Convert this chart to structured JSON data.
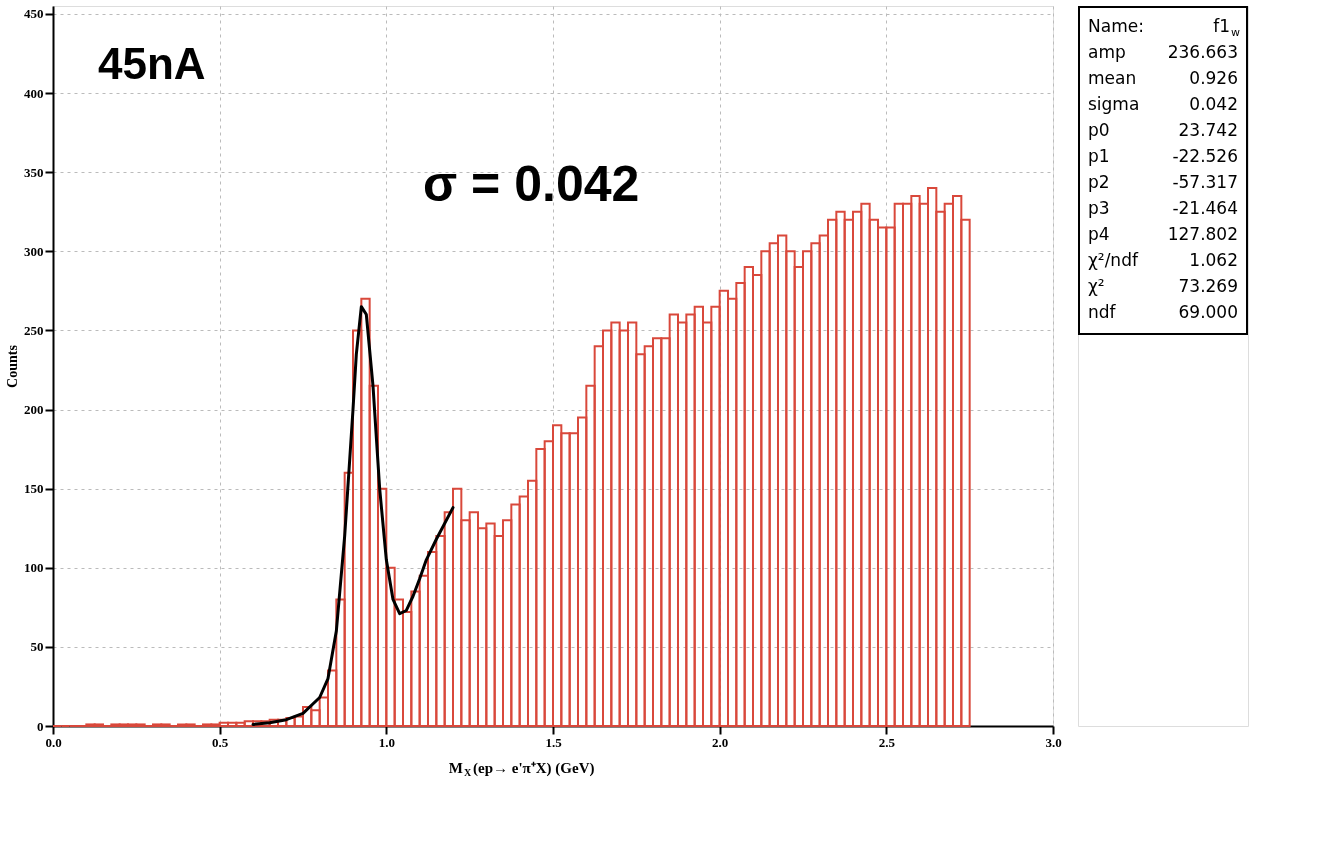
{
  "chart_data": {
    "type": "histogram",
    "xlabel": "M$_{X}$(ep→ e'π⁺X) (GeV)",
    "ylabel": "Counts",
    "bins": [
      0.0,
      0.025,
      0.05,
      0.075,
      0.1,
      0.125,
      0.15,
      0.175,
      0.2,
      0.225,
      0.25,
      0.275,
      0.3,
      0.325,
      0.35,
      0.375,
      0.4,
      0.425,
      0.45,
      0.475,
      0.5,
      0.525,
      0.55,
      0.575,
      0.6,
      0.625,
      0.65,
      0.675,
      0.7,
      0.725,
      0.75,
      0.775,
      0.8,
      0.825,
      0.85,
      0.875,
      0.9,
      0.925,
      0.95,
      0.975,
      1.0,
      1.025,
      1.05,
      1.075,
      1.1,
      1.125,
      1.15,
      1.175,
      1.2,
      1.225,
      1.25,
      1.275,
      1.3,
      1.325,
      1.35,
      1.375,
      1.4,
      1.425,
      1.45,
      1.475,
      1.5,
      1.525,
      1.55,
      1.575,
      1.6,
      1.625,
      1.65,
      1.675,
      1.7,
      1.725,
      1.75,
      1.775,
      1.8,
      1.825,
      1.85,
      1.875,
      1.9,
      1.925,
      1.95,
      1.975,
      2.0,
      2.025,
      2.05,
      2.075,
      2.1,
      2.125,
      2.15,
      2.175,
      2.2,
      2.225,
      2.25,
      2.275,
      2.3,
      2.325,
      2.35,
      2.375,
      2.4,
      2.425,
      2.45,
      2.475,
      2.5,
      2.525,
      2.55,
      2.575,
      2.6,
      2.625,
      2.65,
      2.675,
      2.7,
      2.725,
      2.75
    ],
    "series": [
      {
        "color": "#d9483b",
        "values": [
          0,
          0,
          0,
          0,
          1,
          1,
          0,
          1,
          1,
          1,
          1,
          0,
          1,
          1,
          0,
          1,
          1,
          0,
          1,
          1,
          2,
          2,
          2,
          3,
          3,
          3,
          4,
          4,
          5,
          6,
          12,
          10,
          18,
          35,
          80,
          160,
          250,
          270,
          215,
          150,
          100,
          80,
          72,
          85,
          95,
          110,
          120,
          135,
          150,
          130,
          135,
          125,
          128,
          120,
          130,
          140,
          145,
          155,
          175,
          180,
          190,
          185,
          185,
          195,
          215,
          240,
          250,
          255,
          250,
          255,
          235,
          240,
          245,
          245,
          260,
          255,
          260,
          265,
          255,
          265,
          275,
          270,
          280,
          290,
          285,
          300,
          305,
          310,
          300,
          290,
          300,
          305,
          310,
          320,
          325,
          320,
          325,
          330,
          320,
          315,
          315,
          330,
          330,
          335,
          330,
          340,
          325,
          330,
          335,
          320
        ]
      },
      {
        "type": "line",
        "color": "#000000",
        "x": [
          0.6,
          0.65,
          0.7,
          0.75,
          0.8,
          0.825,
          0.85,
          0.875,
          0.9,
          0.91,
          0.925,
          0.94,
          0.96,
          0.98,
          1.0,
          1.02,
          1.04,
          1.06,
          1.08,
          1.1,
          1.12,
          1.15,
          1.2
        ],
        "values": [
          1,
          2,
          4,
          8,
          18,
          30,
          60,
          120,
          200,
          235,
          265,
          260,
          215,
          150,
          105,
          80,
          71,
          73,
          82,
          93,
          105,
          118,
          138
        ]
      }
    ],
    "xlim": [
      0,
      3.0
    ],
    "xticks": [
      {
        "value": 0,
        "label": "0.0"
      },
      0.5,
      {
        "value": 1,
        "label": "1.0"
      },
      1.5,
      {
        "value": 2,
        "label": "2.0"
      },
      2.5,
      {
        "value": 3,
        "label": "3.0"
      }
    ],
    "ylim": [
      0,
      455
    ],
    "yticks": [
      0,
      50,
      100,
      150,
      200,
      250,
      300,
      350,
      400,
      450
    ],
    "grid": true,
    "annotations": [
      "45nA",
      "σ = 0.042",
      "Name: f1$_{w}$",
      "amp 236.663",
      "mean 0.926",
      "sigma 0.042",
      "p0 23.742",
      "p1 -22.526",
      "p2 -57.317",
      "p3 -21.464",
      "p4 127.802",
      "χ²/ndf 1.062",
      "χ² 73.269",
      "ndf 69.000"
    ]
  }
}
